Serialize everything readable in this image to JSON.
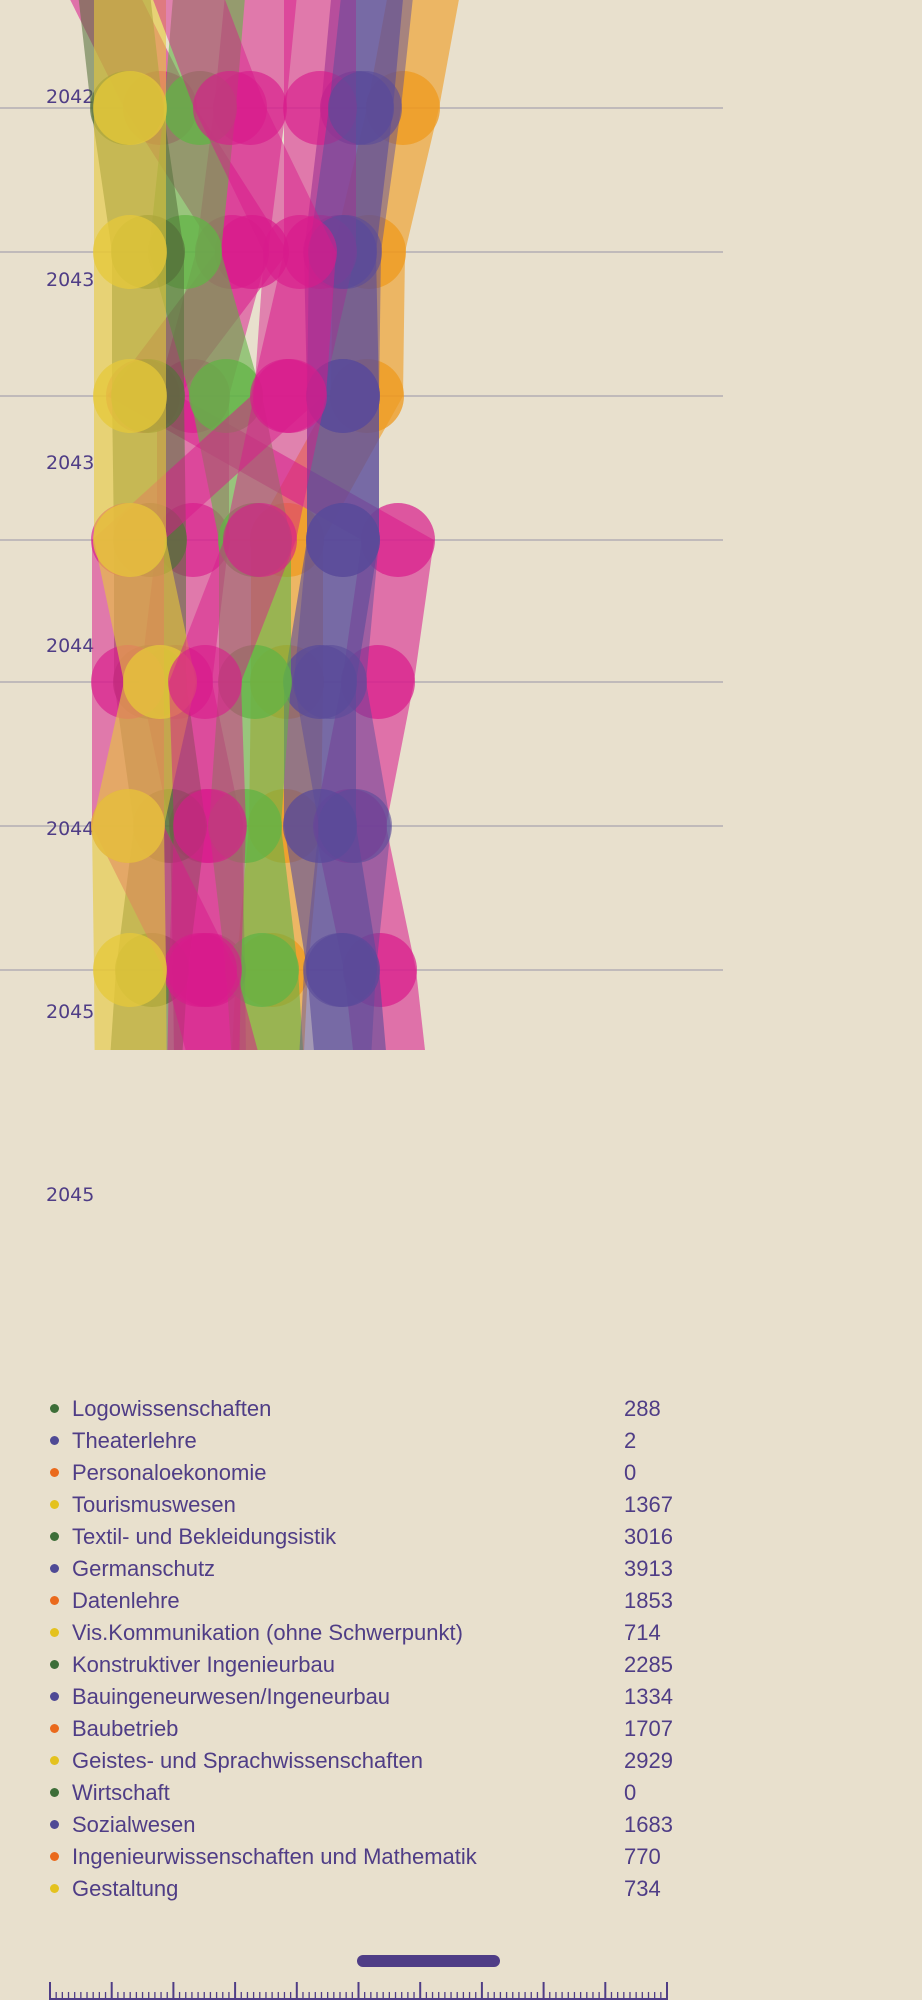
{
  "timeline": {
    "year_labels": [
      "2042",
      "2043",
      "2043",
      "2044",
      "2044",
      "2045",
      "2045"
    ]
  },
  "colors": {
    "magenta": "#d81b8c",
    "purple": "#5a4b9a",
    "orange": "#ef9a1e",
    "green": "#62b346",
    "dark_green": "#55703a",
    "yellow": "#e6c83a",
    "text": "#4f3d86",
    "background": "#e8e0cd",
    "gridline": "#a9a3b0"
  },
  "legend": [
    {
      "label": "Logowissenschaften",
      "value": "288",
      "color": "#3d6e38"
    },
    {
      "label": "Theaterlehre",
      "value": "2",
      "color": "#4f4a95"
    },
    {
      "label": "Personaloekonomie",
      "value": "0",
      "color": "#ea6a1c"
    },
    {
      "label": "Tourismuswesen",
      "value": "1367",
      "color": "#e4c21e"
    },
    {
      "label": "Textil- und Bekleidungsistik",
      "value": "3016",
      "color": "#3d6e38"
    },
    {
      "label": "Germanschutz",
      "value": "3913",
      "color": "#4f4a95"
    },
    {
      "label": "Datenlehre",
      "value": "1853",
      "color": "#ea6a1c"
    },
    {
      "label": "Vis.Kommunikation (ohne Schwerpunkt)",
      "value": "714",
      "color": "#e4c21e"
    },
    {
      "label": "Konstruktiver Ingenieurbau",
      "value": "2285",
      "color": "#3d6e38"
    },
    {
      "label": "Bauingeneurwesen/Ingeneurbau",
      "value": "1334",
      "color": "#4f4a95"
    },
    {
      "label": "Baubetrieb",
      "value": "1707",
      "color": "#ea6a1c"
    },
    {
      "label": "Geistes- und Sprachwissenschaften",
      "value": "2929",
      "color": "#e4c21e"
    },
    {
      "label": "Wirtschaft",
      "value": "0",
      "color": "#3d6e38"
    },
    {
      "label": "Sozialwesen",
      "value": "1683",
      "color": "#4f4a95"
    },
    {
      "label": "Ingenieurwissenschaften und Mathematik",
      "value": "770",
      "color": "#ea6a1c"
    },
    {
      "label": "Gestaltung",
      "value": "734",
      "color": "#e4c21e"
    }
  ]
}
